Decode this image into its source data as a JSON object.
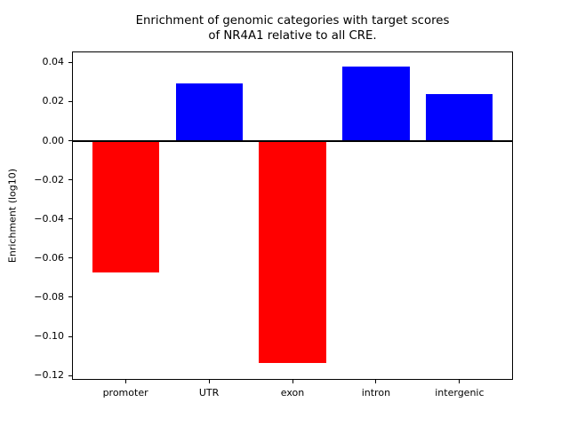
{
  "chart_data": {
    "type": "bar",
    "title": "Enrichment of genomic categories with target scores\nof NR4A1 relative to all CRE.",
    "xlabel": "",
    "ylabel": "Enrichment (log10)",
    "categories": [
      "promoter",
      "UTR",
      "exon",
      "intron",
      "intergenic"
    ],
    "values": [
      -0.0674,
      0.0295,
      -0.1136,
      0.038,
      0.0237
    ],
    "yticks": [
      0.04,
      0.02,
      0.0,
      -0.02,
      -0.04,
      -0.06,
      -0.08,
      -0.1,
      -0.12
    ],
    "ylim": [
      -0.1222,
      0.0456
    ],
    "xlim": [
      -0.64,
      4.64
    ],
    "bar_width": 0.8,
    "positive_color": "#0000ff",
    "negative_color": "#ff0000",
    "zero_line_color": "#000000",
    "frame_color": "#000000",
    "background_color": "#ffffff",
    "grid": false,
    "legend": null
  }
}
